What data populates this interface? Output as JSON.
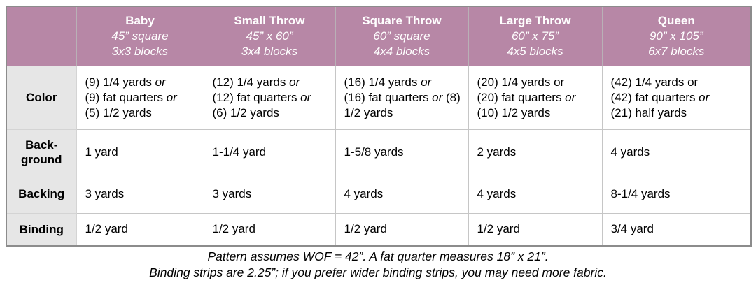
{
  "colors": {
    "header_bg": "#b787a6",
    "header_text": "#ffffff",
    "label_bg": "#e6e6e6",
    "border_outer": "#8c8c8c",
    "border_inner": "#c6c6c6"
  },
  "table": {
    "columns": [
      {
        "title": "Baby",
        "dimensions": "45” square",
        "blocks": "3x3 blocks"
      },
      {
        "title": "Small Throw",
        "dimensions": "45” x 60”",
        "blocks": "3x4 blocks"
      },
      {
        "title": "Square Throw",
        "dimensions": "60” square",
        "blocks": "4x4 blocks"
      },
      {
        "title": "Large Throw",
        "dimensions": "60” x 75”",
        "blocks": "4x5 blocks"
      },
      {
        "title": "Queen",
        "dimensions": "90” x 105”",
        "blocks": "6x7 blocks"
      }
    ],
    "rows": [
      {
        "label_lines": [
          "Color"
        ],
        "cells": [
          [
            "(9) 1/4 yards *or*",
            "(9) fat quarters *or*",
            "(5) 1/2 yards"
          ],
          [
            "(12) 1/4 yards *or*",
            "(12) fat quarters *or*",
            "(6) 1/2 yards"
          ],
          [
            "(16) 1/4 yards *or*",
            "(16) fat quarters *or* (8)",
            "1/2 yards"
          ],
          [
            "(20) 1/4 yards or",
            "(20) fat quarters *or*",
            "(10) 1/2 yards"
          ],
          [
            "(42) 1/4 yards or",
            "(42) fat quarters *or*",
            "(21) half yards"
          ]
        ]
      },
      {
        "label_lines": [
          "Back-",
          "ground"
        ],
        "cells": [
          "1 yard",
          "1-1/4 yard",
          "1-5/8 yards",
          "2 yards",
          "4 yards"
        ]
      },
      {
        "label_lines": [
          "Backing"
        ],
        "cells": [
          "3 yards",
          "3 yards",
          "4 yards",
          "4 yards",
          "8-1/4 yards"
        ]
      },
      {
        "label_lines": [
          "Binding"
        ],
        "cells": [
          "1/2 yard",
          "1/2 yard",
          "1/2 yard",
          "1/2 yard",
          "3/4 yard"
        ]
      }
    ]
  },
  "footnotes": [
    "Pattern assumes WOF = 42”. A fat quarter measures 18” x 21”.",
    "Binding strips are 2.25”; if you prefer wider binding strips, you may need more fabric."
  ]
}
